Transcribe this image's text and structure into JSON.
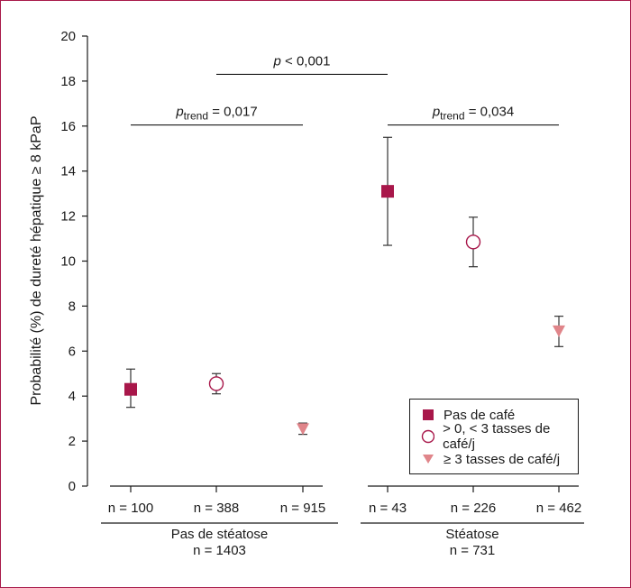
{
  "chart_data": {
    "type": "scatter",
    "ylabel": "Probabilité (%) de dureté hépatique ≥ 8 kPaP",
    "ylim": [
      0,
      20
    ],
    "yticks": [
      "0",
      "2",
      "4",
      "6",
      "8",
      "10",
      "12",
      "14",
      "16",
      "18",
      "20"
    ],
    "categories": [
      "n = 100",
      "n = 388",
      "n = 915",
      "n = 43",
      "n = 226",
      "n = 462"
    ],
    "groups": [
      {
        "label": "Pas de stéatose",
        "n": "n = 1403"
      },
      {
        "label": "Stéatose",
        "n": "n = 731"
      }
    ],
    "series": [
      {
        "name": "Pas de café",
        "marker": "square",
        "color": "#a8174a",
        "points": [
          {
            "category": "n = 100",
            "y": 4.3,
            "lower": 3.5,
            "upper": 5.2
          },
          {
            "category": "n = 43",
            "y": 13.1,
            "lower": 10.7,
            "upper": 15.5
          }
        ]
      },
      {
        "name": "> 0, < 3 tasses de café/j",
        "marker": "circle",
        "color": "#a8174a",
        "points": [
          {
            "category": "n = 388",
            "y": 4.55,
            "lower": 4.1,
            "upper": 5.0
          },
          {
            "category": "n = 226",
            "y": 10.85,
            "lower": 9.75,
            "upper": 11.95
          }
        ]
      },
      {
        "name": "≥ 3 tasses de café/j",
        "marker": "triangle-down",
        "color": "#e0858a",
        "points": [
          {
            "category": "n = 915",
            "y": 2.55,
            "lower": 2.3,
            "upper": 2.8
          },
          {
            "category": "n = 462",
            "y": 6.9,
            "lower": 6.2,
            "upper": 7.55
          }
        ]
      }
    ],
    "annotations": [
      {
        "p": "p",
        "sub": "",
        "text": " < 0,001",
        "y": 18.3,
        "from": "n = 388",
        "to": "n = 43"
      },
      {
        "p": "p",
        "sub": "trend",
        "text": " = 0,017",
        "y": 16.05,
        "from": "n = 100",
        "to": "n = 915"
      },
      {
        "p": "p",
        "sub": "trend",
        "text": " = 0,034",
        "y": 16.05,
        "from": "n = 43",
        "to": "n = 462"
      }
    ],
    "legend": "bottom-right",
    "grid": false
  }
}
